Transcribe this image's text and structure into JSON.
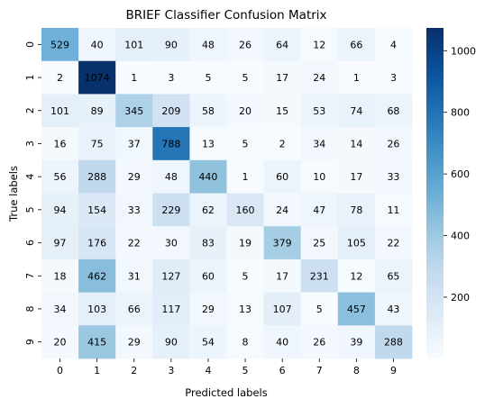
{
  "chart_data": {
    "type": "heatmap",
    "title": "BRIEF Classifier Confusion Matrix",
    "xlabel": "Predicted labels",
    "ylabel": "True labels",
    "x_categories": [
      "0",
      "1",
      "2",
      "3",
      "4",
      "5",
      "6",
      "7",
      "8",
      "9"
    ],
    "y_categories": [
      "0",
      "1",
      "2",
      "3",
      "4",
      "5",
      "6",
      "7",
      "8",
      "9"
    ],
    "values": [
      [
        529,
        40,
        101,
        90,
        48,
        26,
        64,
        12,
        66,
        4
      ],
      [
        2,
        1074,
        1,
        3,
        5,
        5,
        17,
        24,
        1,
        3
      ],
      [
        101,
        89,
        345,
        209,
        58,
        20,
        15,
        53,
        74,
        68
      ],
      [
        16,
        75,
        37,
        788,
        13,
        5,
        2,
        34,
        14,
        26
      ],
      [
        56,
        288,
        29,
        48,
        440,
        1,
        60,
        10,
        17,
        33
      ],
      [
        94,
        154,
        33,
        229,
        62,
        160,
        24,
        47,
        78,
        11
      ],
      [
        97,
        176,
        22,
        30,
        83,
        19,
        379,
        25,
        105,
        22
      ],
      [
        18,
        462,
        31,
        127,
        60,
        5,
        17,
        231,
        12,
        65
      ],
      [
        34,
        103,
        66,
        117,
        29,
        13,
        107,
        5,
        457,
        43
      ],
      [
        20,
        415,
        29,
        90,
        54,
        8,
        40,
        26,
        39,
        288
      ]
    ],
    "colormap": "Blues",
    "colorbar": {
      "range": [
        1,
        1074
      ],
      "ticks": [
        200,
        400,
        600,
        800,
        1000
      ]
    },
    "annotations": true,
    "grid": false
  }
}
